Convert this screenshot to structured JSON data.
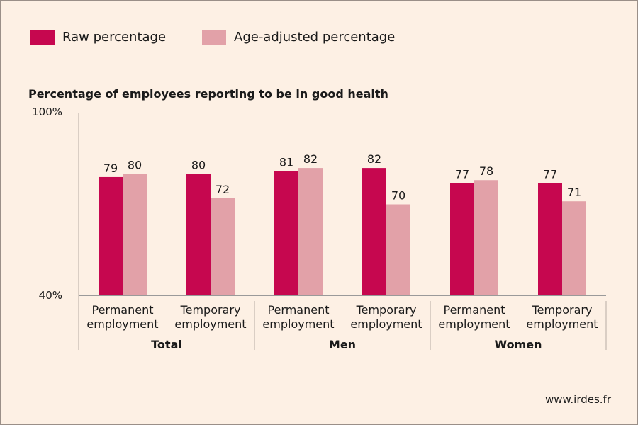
{
  "chart_data": {
    "type": "bar",
    "title": "Percentage of employees reporting to be in good health",
    "ylim": [
      40,
      100
    ],
    "yticks": [
      "40%",
      "100%"
    ],
    "groups": [
      {
        "label": "Total",
        "categories": [
          [
            "Permanent",
            "employment"
          ],
          [
            "Temporary",
            "employment"
          ]
        ]
      },
      {
        "label": "Men",
        "categories": [
          [
            "Permanent",
            "employment"
          ],
          [
            "Temporary",
            "employment"
          ]
        ]
      },
      {
        "label": "Women",
        "categories": [
          [
            "Permanent",
            "employment"
          ],
          [
            "Temporary",
            "employment"
          ]
        ]
      }
    ],
    "series": [
      {
        "name": "Raw percentage",
        "color": "#c6074f",
        "values": [
          79,
          80,
          81,
          82,
          77,
          77
        ]
      },
      {
        "name": "Age-adjusted percentage",
        "color": "#e2a1a8",
        "values": [
          80,
          72,
          82,
          70,
          78,
          71
        ]
      }
    ],
    "grid": false,
    "legend": "top-left"
  },
  "source": "www.irdes.fr"
}
